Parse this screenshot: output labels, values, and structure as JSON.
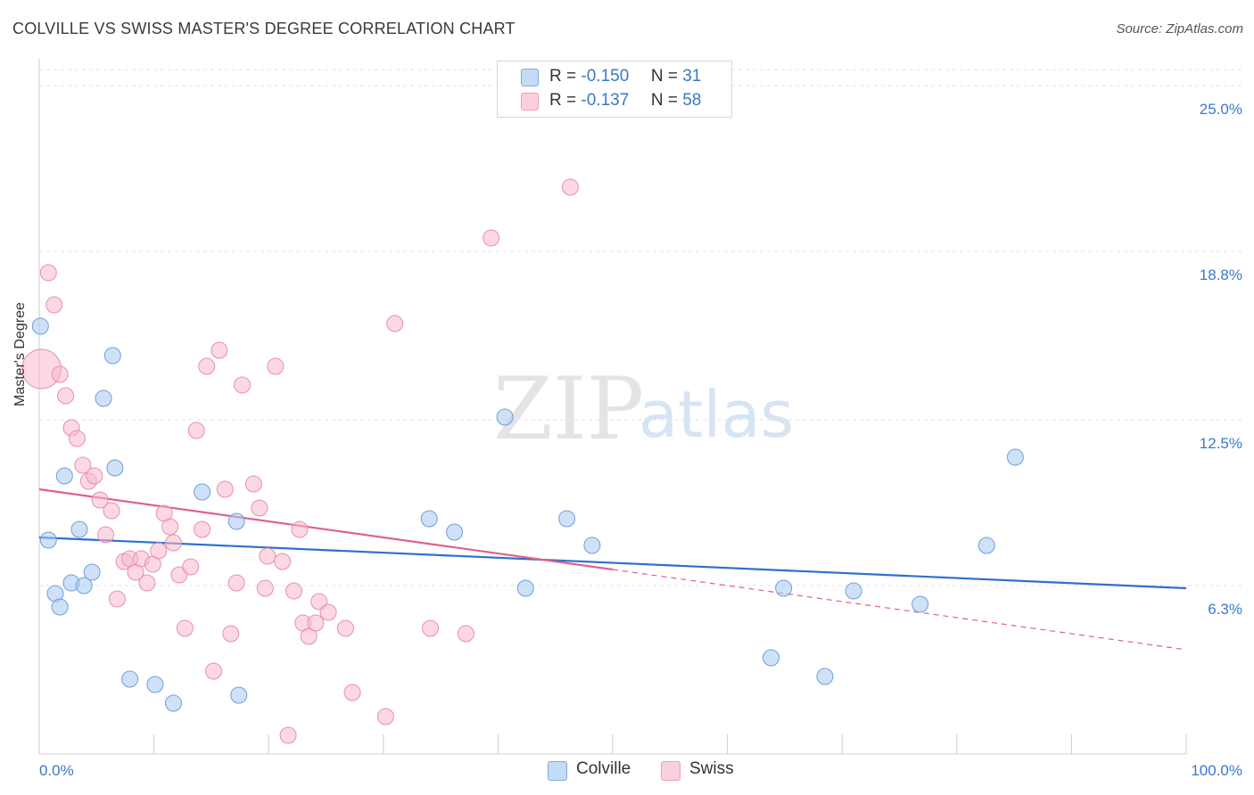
{
  "title": "COLVILLE VS SWISS MASTER'S DEGREE CORRELATION CHART",
  "source": "Source: ZipAtlas.com",
  "watermark": {
    "zip": "ZIP",
    "atlas": "atlas"
  },
  "legend": {
    "rows": [
      {
        "r_label": "R =",
        "r_value": "-0.150",
        "n_label": "N =",
        "n_value": "31",
        "color": "#a8c8f0"
      },
      {
        "r_label": "R =",
        "r_value": "-0.137",
        "n_label": "N =",
        "n_value": "58",
        "color": "#f8b8cc"
      }
    ]
  },
  "bottom_legend": [
    {
      "label": "Colville",
      "color": "#a8c8f0"
    },
    {
      "label": "Swiss",
      "color": "#f8b8cc"
    }
  ],
  "chart_data": {
    "type": "scatter",
    "title": "COLVILLE VS SWISS MASTER'S DEGREE CORRELATION CHART",
    "ylabel": "Master's Degree",
    "xlabel": "",
    "xlim": [
      0,
      100
    ],
    "ylim": [
      0,
      25.6
    ],
    "x_tick_labels": [
      {
        "value": 0,
        "label": "0.0%"
      },
      {
        "value": 100,
        "label": "100.0%"
      }
    ],
    "y_tick_labels": [
      {
        "value": 6.3,
        "label": "6.3%"
      },
      {
        "value": 12.5,
        "label": "12.5%"
      },
      {
        "value": 18.8,
        "label": "18.8%"
      },
      {
        "value": 25.0,
        "label": "25.0%"
      }
    ],
    "series": [
      {
        "name": "Colville",
        "color": "#a8c8f0",
        "stroke": "#6f9fd8",
        "trend": {
          "x0": 0,
          "y0": 8.1,
          "x1": 100,
          "y1": 6.2,
          "color": "#2f6fcf",
          "dashed_from": null
        },
        "points": [
          {
            "x": 0.1,
            "y": 16.0
          },
          {
            "x": 0.8,
            "y": 8.0
          },
          {
            "x": 1.4,
            "y": 6.0
          },
          {
            "x": 1.8,
            "y": 5.5
          },
          {
            "x": 2.2,
            "y": 10.4
          },
          {
            "x": 2.8,
            "y": 6.4
          },
          {
            "x": 3.5,
            "y": 8.4
          },
          {
            "x": 3.9,
            "y": 6.3
          },
          {
            "x": 4.6,
            "y": 6.8
          },
          {
            "x": 5.6,
            "y": 13.3
          },
          {
            "x": 6.4,
            "y": 14.9
          },
          {
            "x": 6.6,
            "y": 10.7
          },
          {
            "x": 7.9,
            "y": 2.8
          },
          {
            "x": 10.1,
            "y": 2.6
          },
          {
            "x": 11.7,
            "y": 1.9
          },
          {
            "x": 14.2,
            "y": 9.8
          },
          {
            "x": 17.2,
            "y": 8.7
          },
          {
            "x": 17.4,
            "y": 2.2
          },
          {
            "x": 34.0,
            "y": 8.8
          },
          {
            "x": 36.2,
            "y": 8.3
          },
          {
            "x": 40.6,
            "y": 12.6
          },
          {
            "x": 42.4,
            "y": 6.2
          },
          {
            "x": 46.0,
            "y": 8.8
          },
          {
            "x": 48.2,
            "y": 7.8
          },
          {
            "x": 63.8,
            "y": 3.6
          },
          {
            "x": 64.9,
            "y": 6.2
          },
          {
            "x": 68.5,
            "y": 2.9
          },
          {
            "x": 71.0,
            "y": 6.1
          },
          {
            "x": 76.8,
            "y": 5.6
          },
          {
            "x": 82.6,
            "y": 7.8
          },
          {
            "x": 85.1,
            "y": 11.1
          }
        ]
      },
      {
        "name": "Swiss",
        "color": "#f8b8cc",
        "stroke": "#e890aa",
        "trend": {
          "x0": 0,
          "y0": 9.9,
          "x1": 100,
          "y1": 3.9,
          "color": "#e06090",
          "dashed_from": 50
        },
        "points": [
          {
            "x": 0.2,
            "y": 14.4,
            "big": true
          },
          {
            "x": 0.8,
            "y": 18.0
          },
          {
            "x": 1.3,
            "y": 16.8
          },
          {
            "x": 1.8,
            "y": 14.2
          },
          {
            "x": 2.3,
            "y": 13.4
          },
          {
            "x": 2.8,
            "y": 12.2
          },
          {
            "x": 3.3,
            "y": 11.8
          },
          {
            "x": 3.8,
            "y": 10.8
          },
          {
            "x": 4.3,
            "y": 10.2
          },
          {
            "x": 4.8,
            "y": 10.4
          },
          {
            "x": 5.3,
            "y": 9.5
          },
          {
            "x": 5.8,
            "y": 8.2
          },
          {
            "x": 6.3,
            "y": 9.1
          },
          {
            "x": 6.8,
            "y": 5.8
          },
          {
            "x": 7.4,
            "y": 7.2
          },
          {
            "x": 7.9,
            "y": 7.3
          },
          {
            "x": 8.4,
            "y": 6.8
          },
          {
            "x": 8.9,
            "y": 7.3
          },
          {
            "x": 9.4,
            "y": 6.4
          },
          {
            "x": 9.9,
            "y": 7.1
          },
          {
            "x": 10.4,
            "y": 7.6
          },
          {
            "x": 10.9,
            "y": 9.0
          },
          {
            "x": 11.4,
            "y": 8.5
          },
          {
            "x": 11.7,
            "y": 7.9
          },
          {
            "x": 12.2,
            "y": 6.7
          },
          {
            "x": 12.7,
            "y": 4.7
          },
          {
            "x": 13.2,
            "y": 7.0
          },
          {
            "x": 13.7,
            "y": 12.1
          },
          {
            "x": 14.2,
            "y": 8.4
          },
          {
            "x": 14.6,
            "y": 14.5
          },
          {
            "x": 15.2,
            "y": 3.1
          },
          {
            "x": 15.7,
            "y": 15.1
          },
          {
            "x": 16.2,
            "y": 9.9
          },
          {
            "x": 16.7,
            "y": 4.5
          },
          {
            "x": 17.2,
            "y": 6.4
          },
          {
            "x": 17.7,
            "y": 13.8
          },
          {
            "x": 18.7,
            "y": 10.1
          },
          {
            "x": 19.2,
            "y": 9.2
          },
          {
            "x": 19.7,
            "y": 6.2
          },
          {
            "x": 19.9,
            "y": 7.4
          },
          {
            "x": 20.6,
            "y": 14.5
          },
          {
            "x": 21.2,
            "y": 7.2
          },
          {
            "x": 21.7,
            "y": 0.7
          },
          {
            "x": 22.2,
            "y": 6.1
          },
          {
            "x": 22.7,
            "y": 8.4
          },
          {
            "x": 23.0,
            "y": 4.9
          },
          {
            "x": 23.5,
            "y": 4.4
          },
          {
            "x": 24.1,
            "y": 4.9
          },
          {
            "x": 24.4,
            "y": 5.7
          },
          {
            "x": 25.2,
            "y": 5.3
          },
          {
            "x": 26.7,
            "y": 4.7
          },
          {
            "x": 27.3,
            "y": 2.3
          },
          {
            "x": 31.0,
            "y": 16.1
          },
          {
            "x": 30.2,
            "y": 1.4
          },
          {
            "x": 34.1,
            "y": 4.7
          },
          {
            "x": 37.2,
            "y": 4.5
          },
          {
            "x": 39.4,
            "y": 19.3
          },
          {
            "x": 46.3,
            "y": 21.2
          }
        ]
      }
    ]
  }
}
